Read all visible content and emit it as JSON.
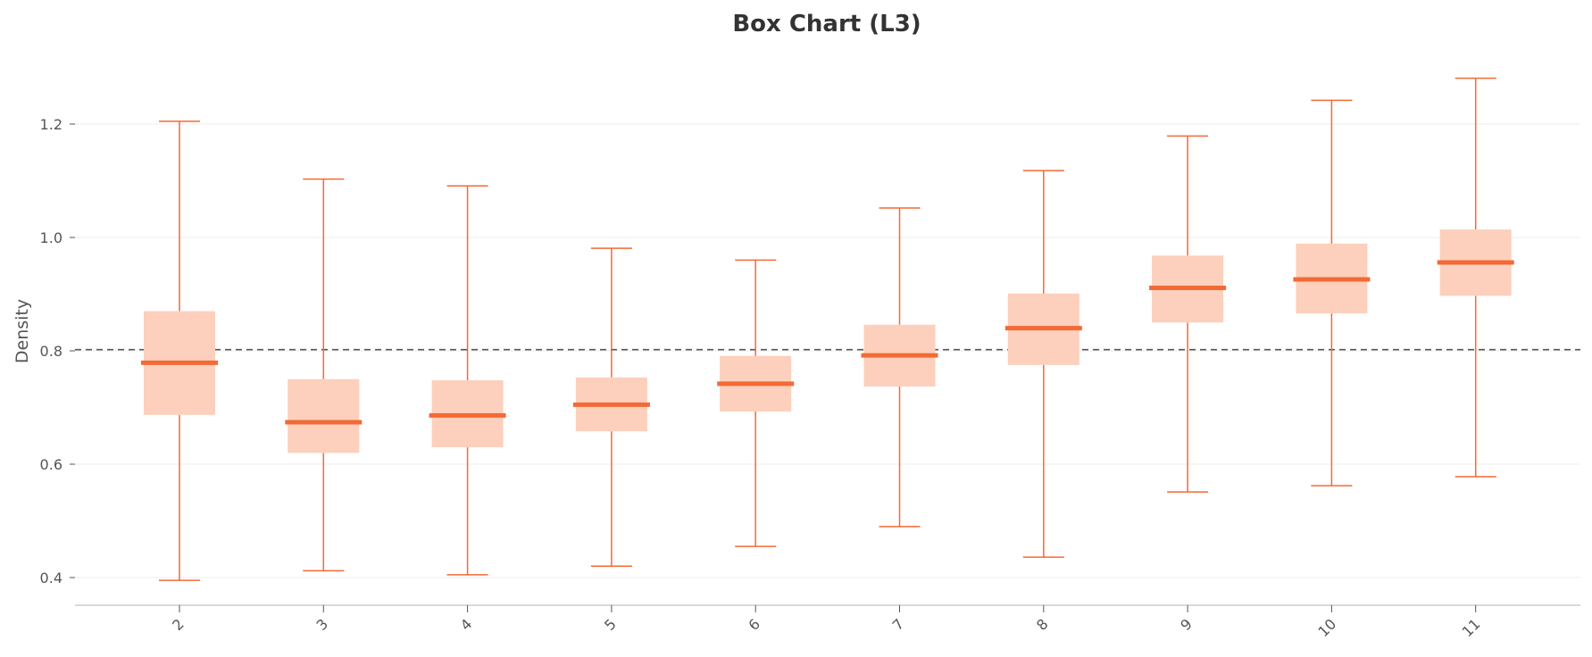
{
  "chart_data": {
    "type": "box",
    "title": "Box Chart (L3)",
    "xlabel": "",
    "ylabel": "Density",
    "ylim": [
      0.35,
      1.32
    ],
    "yticks": [
      0.4,
      0.6,
      0.8,
      1.0,
      1.2
    ],
    "ytick_labels": [
      "0.4",
      "0.6",
      "0.8",
      "1.0",
      "1.2"
    ],
    "reference_line": 0.802,
    "grid": true,
    "categories": [
      "2",
      "3",
      "4",
      "5",
      "6",
      "7",
      "8",
      "9",
      "10",
      "11"
    ],
    "boxes": [
      {
        "category": "2",
        "min": 0.395,
        "q1": 0.687,
        "median": 0.779,
        "q3": 0.87,
        "max": 1.205
      },
      {
        "category": "3",
        "min": 0.412,
        "q1": 0.62,
        "median": 0.674,
        "q3": 0.75,
        "max": 1.103
      },
      {
        "category": "4",
        "min": 0.405,
        "q1": 0.63,
        "median": 0.686,
        "q3": 0.748,
        "max": 1.091
      },
      {
        "category": "5",
        "min": 0.42,
        "q1": 0.658,
        "median": 0.705,
        "q3": 0.753,
        "max": 0.981
      },
      {
        "category": "6",
        "min": 0.455,
        "q1": 0.693,
        "median": 0.742,
        "q3": 0.791,
        "max": 0.96
      },
      {
        "category": "7",
        "min": 0.49,
        "q1": 0.737,
        "median": 0.792,
        "q3": 0.846,
        "max": 1.052
      },
      {
        "category": "8",
        "min": 0.436,
        "q1": 0.775,
        "median": 0.84,
        "q3": 0.901,
        "max": 1.118
      },
      {
        "category": "9",
        "min": 0.551,
        "q1": 0.85,
        "median": 0.911,
        "q3": 0.968,
        "max": 1.179
      },
      {
        "category": "10",
        "min": 0.562,
        "q1": 0.866,
        "median": 0.926,
        "q3": 0.989,
        "max": 1.242
      },
      {
        "category": "11",
        "min": 0.578,
        "q1": 0.897,
        "median": 0.956,
        "q3": 1.014,
        "max": 1.281
      }
    ],
    "colors": {
      "box_fill": "#fcd0bc",
      "line": "#f26a35",
      "reference_line": "#555555",
      "grid": "#eeeeee",
      "axis": "#cccccc",
      "text": "#555555",
      "title": "#333333"
    }
  }
}
